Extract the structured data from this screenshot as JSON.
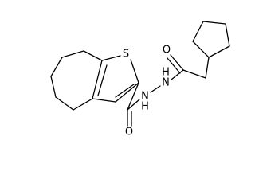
{
  "atoms": [
    {
      "label": "S"
    },
    {
      "label": "O"
    },
    {
      "label": "O"
    },
    {
      "label": "N"
    },
    {
      "label": "H"
    },
    {
      "label": "N"
    },
    {
      "label": "H"
    }
  ]
}
